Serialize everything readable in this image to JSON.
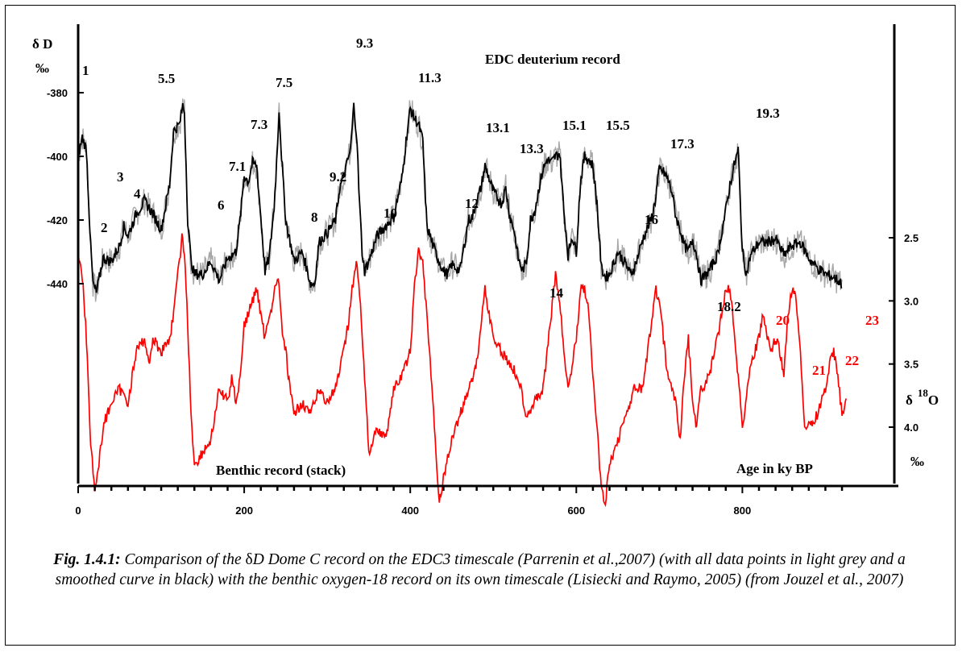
{
  "chart_data": {
    "type": "line",
    "title": "EDC deuterium record",
    "secondary_title": "Benthic record (stack)",
    "xlabel": "Age in ky BP",
    "xlim": [
      0,
      930
    ],
    "x_ticks": [
      "0",
      "200",
      "400",
      "600",
      "800"
    ],
    "left_axis": {
      "label": "δ D",
      "unit": "‰",
      "ylim": [
        -375,
        -452
      ],
      "ticks": [
        "-380",
        "-400",
        "-420",
        "-440"
      ]
    },
    "right_axis": {
      "label": "δ 18O",
      "label_main": "δ",
      "label_sup": "18",
      "label_tail": "O",
      "unit": "‰",
      "ylim": [
        1.35,
        4.75
      ],
      "ticks": [
        "2.5",
        "3.0",
        "3.5",
        "4.0"
      ]
    },
    "colors": {
      "deuterium": "#000000",
      "deuterium_raw": "#a8a8a8",
      "benthic": "#ff0000"
    },
    "series": [
      {
        "axis": "left",
        "color": "#000000",
        "x": [
          0,
          5,
          10,
          15,
          18,
          22,
          30,
          40,
          50,
          55,
          60,
          70,
          80,
          90,
          100,
          110,
          115,
          122,
          126,
          128,
          132,
          136,
          140,
          150,
          160,
          170,
          180,
          190,
          195,
          200,
          205,
          210,
          215,
          220,
          225,
          230,
          236,
          240,
          242,
          245,
          250,
          260,
          270,
          280,
          285,
          290,
          300,
          310,
          315,
          320,
          324,
          328,
          332,
          336,
          338,
          342,
          345,
          350,
          360,
          370,
          380,
          390,
          395,
          400,
          405,
          410,
          415,
          420,
          430,
          440,
          445,
          450,
          460,
          470,
          475,
          480,
          485,
          490,
          495,
          500,
          505,
          510,
          515,
          520,
          525,
          530,
          535,
          540,
          545,
          550,
          555,
          560,
          565,
          570,
          575,
          580,
          585,
          590,
          595,
          600,
          605,
          610,
          615,
          620,
          625,
          630,
          635,
          640,
          650,
          660,
          665,
          670,
          680,
          690,
          695,
          700,
          705,
          710,
          715,
          720,
          725,
          730,
          735,
          740,
          745,
          750,
          760,
          770,
          780,
          785,
          790,
          795,
          800,
          805,
          810,
          820,
          830,
          840,
          850,
          860,
          870,
          880,
          890,
          900,
          910,
          915,
          920
        ],
        "y": [
          -400,
          -394,
          -398,
          -428,
          -440,
          -443,
          -432,
          -433,
          -428,
          -422,
          -425,
          -418,
          -414,
          -418,
          -423,
          -409,
          -392,
          -390,
          -384,
          -386,
          -420,
          -433,
          -437,
          -437,
          -433,
          -439,
          -432,
          -430,
          -420,
          -406,
          -408,
          -402,
          -403,
          -419,
          -436,
          -432,
          -416,
          -397,
          -385,
          -400,
          -420,
          -433,
          -430,
          -440,
          -440,
          -427,
          -424,
          -420,
          -410,
          -406,
          -402,
          -398,
          -384,
          -395,
          -410,
          -430,
          -436,
          -433,
          -425,
          -422,
          -419,
          -407,
          -395,
          -385,
          -388,
          -390,
          -395,
          -422,
          -430,
          -436,
          -437,
          -434,
          -436,
          -420,
          -419,
          -414,
          -410,
          -403,
          -407,
          -411,
          -413,
          -415,
          -410,
          -419,
          -423,
          -432,
          -436,
          -433,
          -420,
          -417,
          -410,
          -404,
          -401,
          -402,
          -400,
          -399,
          -417,
          -431,
          -425,
          -430,
          -408,
          -400,
          -401,
          -403,
          -415,
          -435,
          -438,
          -437,
          -430,
          -434,
          -437,
          -435,
          -426,
          -420,
          -414,
          -404,
          -405,
          -407,
          -411,
          -419,
          -423,
          -428,
          -430,
          -426,
          -431,
          -439,
          -436,
          -431,
          -417,
          -409,
          -403,
          -398,
          -430,
          -437,
          -431,
          -427,
          -427,
          -426,
          -431,
          -428,
          -427,
          -432,
          -435,
          -437,
          -438,
          -439,
          -440
        ]
      },
      {
        "axis": "right",
        "color": "#ff0000",
        "x": [
          0,
          5,
          10,
          15,
          20,
          25,
          30,
          40,
          50,
          60,
          70,
          80,
          85,
          90,
          100,
          110,
          115,
          120,
          125,
          128,
          132,
          136,
          140,
          150,
          160,
          170,
          180,
          185,
          190,
          195,
          200,
          210,
          215,
          220,
          225,
          230,
          235,
          240,
          242,
          245,
          250,
          255,
          260,
          270,
          280,
          290,
          300,
          310,
          320,
          325,
          330,
          335,
          340,
          345,
          350,
          360,
          370,
          380,
          390,
          400,
          405,
          410,
          415,
          420,
          430,
          435,
          440,
          450,
          460,
          470,
          480,
          485,
          490,
          495,
          500,
          510,
          520,
          530,
          540,
          550,
          560,
          570,
          575,
          580,
          585,
          590,
          600,
          605,
          610,
          615,
          620,
          625,
          630,
          635,
          640,
          650,
          660,
          670,
          680,
          690,
          695,
          700,
          705,
          710,
          720,
          725,
          730,
          735,
          740,
          745,
          750,
          760,
          770,
          780,
          785,
          790,
          795,
          800,
          810,
          820,
          825,
          830,
          835,
          840,
          845,
          850,
          855,
          860,
          865,
          870,
          875,
          880,
          890,
          900,
          905,
          910,
          915,
          920,
          925
        ],
        "y": [
          2.6,
          2.8,
          3.3,
          4.1,
          4.5,
          4.3,
          4.0,
          3.8,
          3.7,
          3.8,
          3.4,
          3.3,
          3.5,
          3.3,
          3.4,
          3.3,
          3.1,
          2.8,
          2.5,
          2.6,
          3.2,
          3.9,
          4.3,
          4.2,
          4.1,
          3.7,
          3.8,
          3.6,
          3.8,
          3.6,
          3.2,
          3.0,
          2.9,
          3.1,
          3.3,
          3.1,
          3.0,
          2.8,
          2.9,
          3.2,
          3.4,
          3.7,
          3.9,
          3.8,
          3.9,
          3.7,
          3.8,
          3.7,
          3.4,
          3.2,
          2.9,
          2.7,
          3.0,
          3.6,
          4.2,
          4.0,
          4.1,
          3.7,
          3.6,
          3.4,
          2.9,
          2.6,
          2.7,
          3.1,
          4.1,
          4.6,
          4.4,
          4.1,
          3.9,
          3.7,
          3.5,
          3.2,
          2.9,
          3.1,
          3.3,
          3.4,
          3.5,
          3.6,
          3.9,
          3.8,
          3.7,
          3.1,
          2.8,
          3.0,
          3.4,
          3.7,
          3.3,
          2.9,
          2.9,
          3.1,
          3.6,
          4.0,
          4.5,
          4.6,
          4.3,
          4.1,
          3.9,
          3.7,
          3.7,
          3.2,
          2.9,
          3.0,
          3.3,
          3.6,
          3.8,
          4.1,
          3.6,
          3.3,
          3.8,
          4.0,
          3.7,
          3.6,
          3.3,
          2.9,
          2.9,
          3.2,
          3.6,
          4.0,
          3.5,
          3.3,
          3.1,
          3.3,
          3.4,
          3.3,
          3.4,
          3.6,
          3.1,
          2.9,
          3.0,
          3.4,
          4.0,
          4.0,
          3.9,
          3.7,
          3.5,
          3.4,
          3.6,
          3.9,
          3.8
        ]
      }
    ],
    "annotations_top": [
      "1",
      "2",
      "3",
      "4",
      "5.5",
      "6",
      "7.1",
      "7.3",
      "7.5",
      "8",
      "9.2",
      "9.3",
      "10",
      "11.3",
      "12",
      "13.1",
      "13.3",
      "14",
      "15.1",
      "15.5",
      "16",
      "17.3",
      "18.2",
      "19.3"
    ],
    "annotations_red": [
      "20",
      "21",
      "22",
      "23"
    ]
  },
  "caption": {
    "fig_label": "Fig. 1.4.1:",
    "text_part1": " Comparison of the ",
    "delta_symbol": "δ",
    "text_part2": "D Dome C record on the EDC3 timescale (Parrenin et al.,2007) (with all data points in light grey and a smoothed curve in black) with the benthic oxygen-18 record on its own timescale (Lisiecki and Raymo, 2005) (from Jouzel et al., 2007)"
  }
}
